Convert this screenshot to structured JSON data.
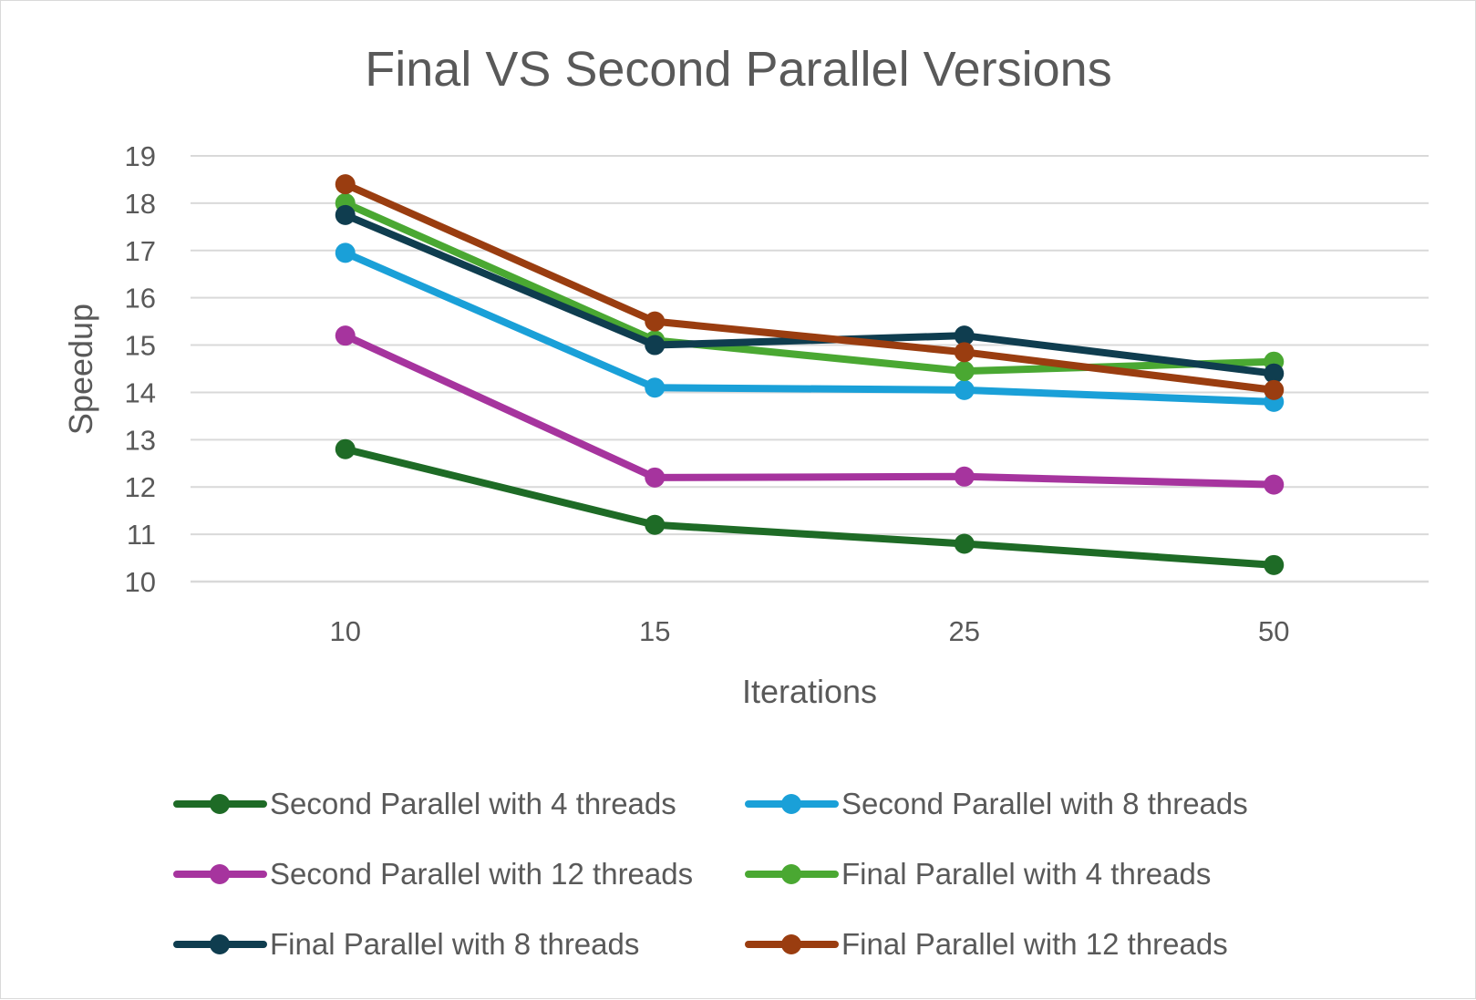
{
  "chart_data": {
    "type": "line",
    "title": "Final VS Second Parallel Versions",
    "xlabel": "Iterations",
    "ylabel": "Speedup",
    "categories": [
      "10",
      "15",
      "25",
      "50"
    ],
    "ylim": [
      10,
      19
    ],
    "yticks": [
      10,
      11,
      12,
      13,
      14,
      15,
      16,
      17,
      18,
      19
    ],
    "grid": true,
    "legend_position": "bottom",
    "series": [
      {
        "name": "Second Parallel with 4 threads",
        "color": "#1e6b26",
        "values": [
          12.8,
          11.2,
          10.8,
          10.35
        ]
      },
      {
        "name": "Second Parallel with 8 threads",
        "color": "#1aa0d8",
        "values": [
          16.95,
          14.1,
          14.05,
          13.8
        ]
      },
      {
        "name": "Second Parallel with 12 threads",
        "color": "#a6349e",
        "values": [
          15.2,
          12.2,
          12.22,
          12.05
        ]
      },
      {
        "name": "Final Parallel with 4 threads",
        "color": "#4aa832",
        "values": [
          18.0,
          15.1,
          14.45,
          14.65
        ]
      },
      {
        "name": "Final Parallel with 8 threads",
        "color": "#0f3d4f",
        "values": [
          17.75,
          15.0,
          15.2,
          14.4
        ]
      },
      {
        "name": "Final Parallel with 12 threads",
        "color": "#9a3d10",
        "values": [
          18.4,
          15.5,
          14.85,
          14.05
        ]
      }
    ]
  }
}
